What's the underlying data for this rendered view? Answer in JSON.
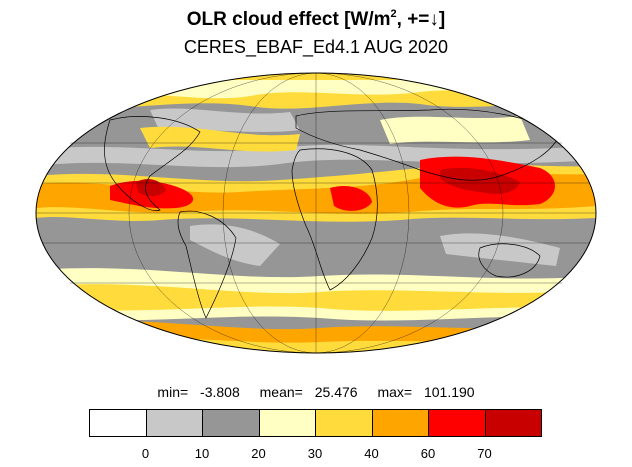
{
  "title": {
    "main": "OLR cloud effect [W/m",
    "sup": "2",
    "tail": ", +=↓]"
  },
  "subtitle": "CERES_EBAF_Ed4.1 AUG 2020",
  "stats": {
    "min_label": "min=",
    "min": "-3.808",
    "mean_label": "mean=",
    "mean": "25.476",
    "max_label": "max=",
    "max": "101.190"
  },
  "colorbar": {
    "colors": [
      "#ffffff",
      "#c8c8c8",
      "#969696",
      "#ffffc4",
      "#ffdc3c",
      "#ffa500",
      "#ff0000",
      "#c80000"
    ],
    "labels": [
      "0",
      "10",
      "20",
      "30",
      "40",
      "60",
      "70"
    ]
  },
  "map": {
    "projection": "mollweide",
    "continent_outline_color": "#000000",
    "graticule": "on"
  }
}
